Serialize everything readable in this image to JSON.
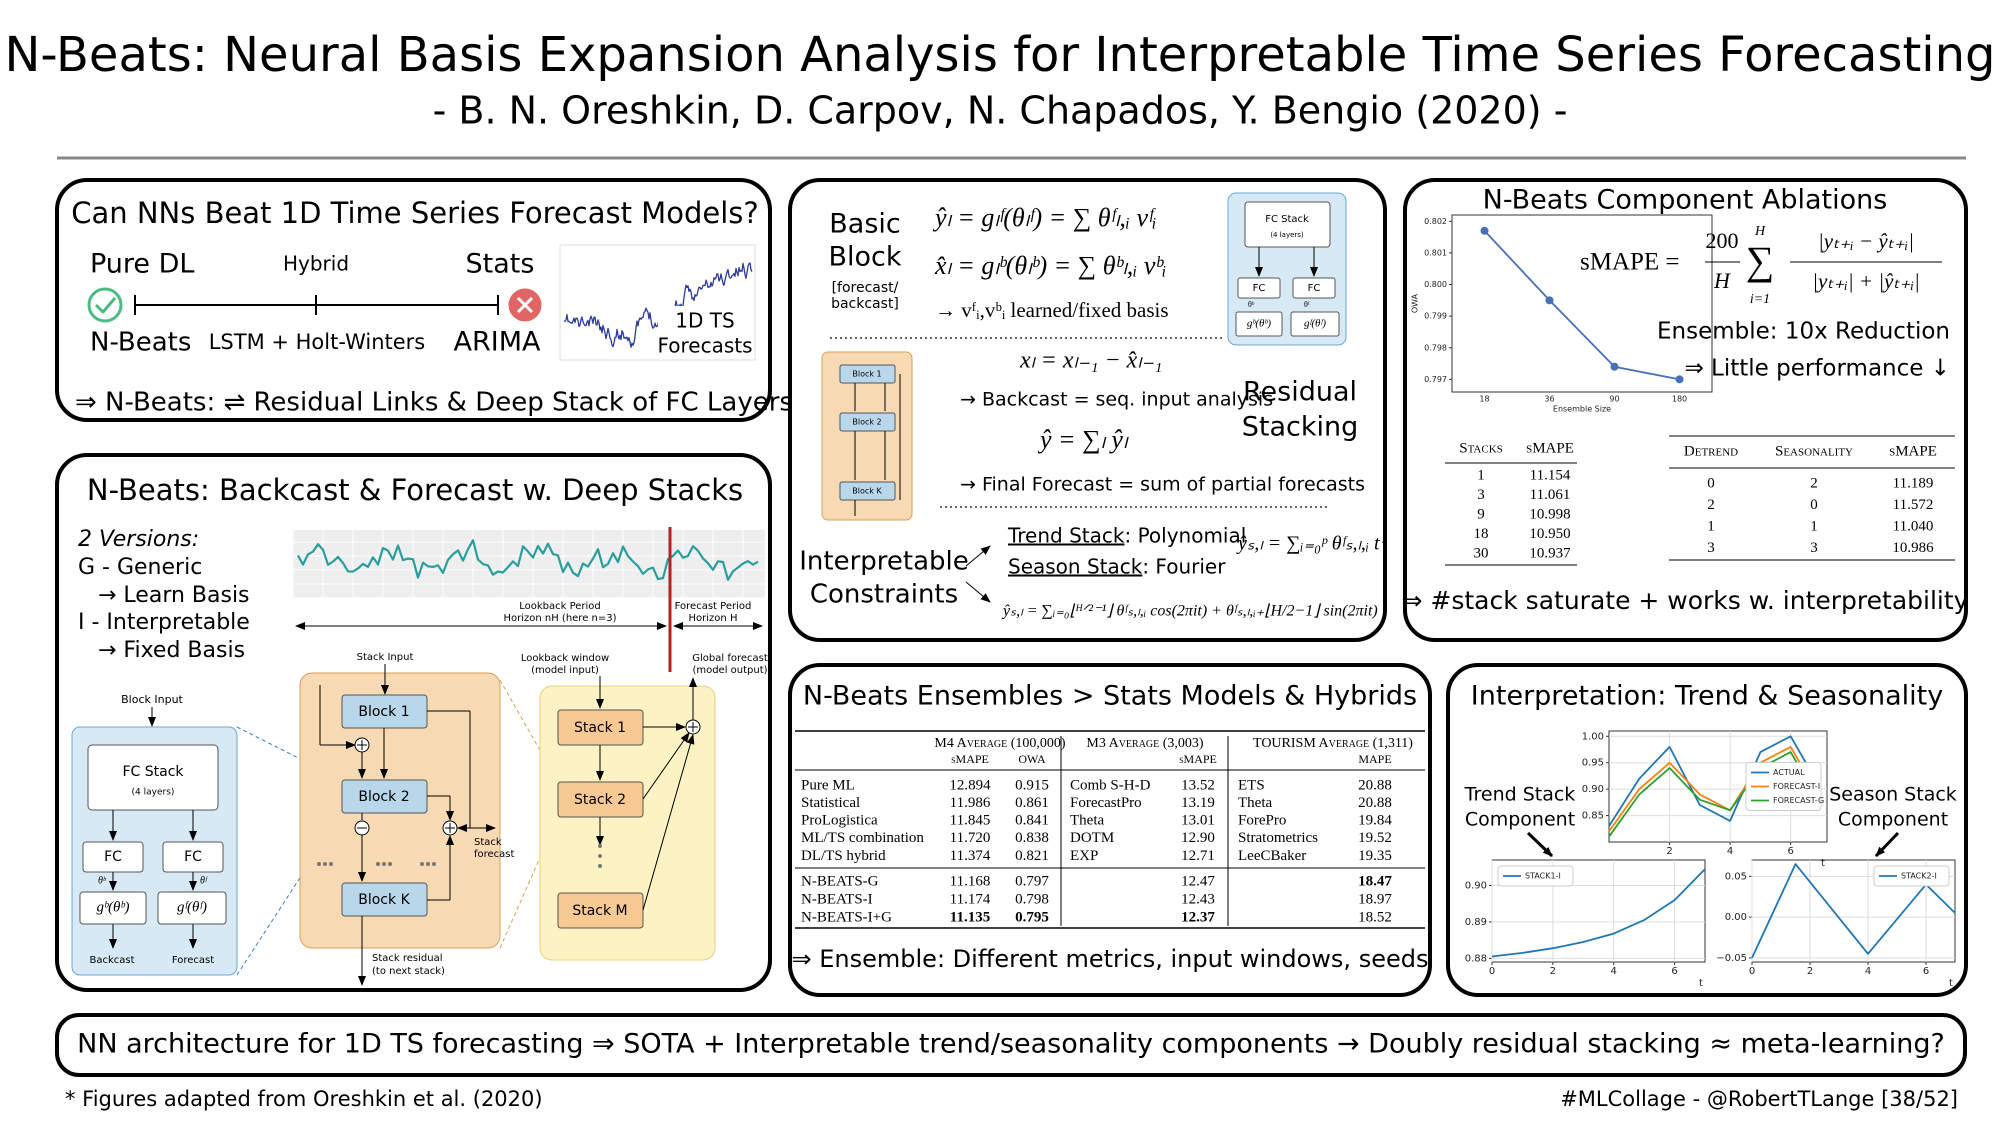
{
  "header": {
    "title": "N-Beats: Neural Basis Expansion Analysis for Interpretable Time Series Forecasting",
    "subtitle": "- B. N. Oreshkin, D. Carpov, N. Chapados, Y. Bengio (2020) -"
  },
  "motivation": {
    "title": "Can NNs Beat 1D Time Series Forecast Models?",
    "left": "Pure DL",
    "mid": "Hybrid",
    "right": "Stats",
    "left_model": "N-Beats",
    "mid_model": "LSTM + Holt-Winters",
    "right_model": "ARIMA",
    "figure_label": [
      "1D TS",
      "Forecasts"
    ],
    "conclusion": "⇒ N-Beats: ⇌ Residual Links & Deep Stack of FC Layers"
  },
  "architecture": {
    "title": "N-Beats: Backcast & Forecast w. Deep Stacks",
    "versions": [
      "2 Versions:",
      "G - Generic",
      "→ Learn Basis",
      "I - Interpretable",
      "→ Fixed Basis"
    ],
    "lookback": [
      "Lookback Period",
      "Horizon nH (here n=3)"
    ],
    "forecast_period": [
      "Forecast Period",
      "Horizon H"
    ],
    "block_input": "Block Input",
    "fc_stack": "FC Stack",
    "fc_layers": "(4 layers)",
    "fc": "FC",
    "theta_b": "θᵇ",
    "theta_f": "θᶠ",
    "g_b": "gᵇ(θᵇ)",
    "g_f": "gᶠ(θᶠ)",
    "backcast": "Backcast",
    "forecast": "Forecast",
    "stack_input": "Stack Input",
    "blocks": [
      "Block 1",
      "Block 2",
      "Block K"
    ],
    "stack_forecast": [
      "Stack",
      "forecast"
    ],
    "stack_residual": [
      "Stack residual",
      "(to next stack)"
    ],
    "lookback_window": [
      "Lookback window",
      "(model input)"
    ],
    "global_forecast": [
      "Global forecast",
      "(model output)"
    ],
    "stacks": [
      "Stack 1",
      "Stack 2",
      "Stack M"
    ]
  },
  "block": {
    "heading": [
      "Basic",
      "Block"
    ],
    "note": [
      "[forecast/",
      "backcast]"
    ],
    "eq_forecast": "ŷₗ = gₗᶠ(θₗᶠ) = ∑ θᶠₗ,ᵢ vᶠᵢ",
    "eq_backcast": "x̂ₗ = gₗᵇ(θₗᵇ) = ∑ θᵇₗ,ᵢ vᵇᵢ",
    "basis": "→ vᶠᵢ,vᵇᵢ learned/fixed basis",
    "fig_fc_stack": "FC Stack",
    "fig_layers": "(4 layers)",
    "fig_fc": "FC",
    "fig_theta_b": "θᵇ",
    "fig_theta_f": "θᶠ",
    "fig_g_b": "gᵇ(θᵇ)",
    "fig_g_f": "gᶠ(θᶠ)",
    "fig_blocks": [
      "Block 1",
      "Block 2",
      "Block K"
    ],
    "eq_residual": "xₗ = xₗ₋₁ − x̂ₗ₋₁",
    "backcast_note": "→ Backcast = seq. input analysis",
    "residual_heading": [
      "Residual",
      "Stacking"
    ],
    "eq_sum": "ŷ = ∑ₗ ŷₗ",
    "final_note": "→ Final Forecast = sum of partial forecasts",
    "constraints": [
      "Interpretable",
      "Constraints"
    ],
    "trend": "Trend Stack",
    "trend_basis": ": Polynomial",
    "season": "Season Stack",
    "season_basis": ": Fourier",
    "eq_trend": "ŷₛ,ₗ = ∑ᵢ₌₀ᵖ θᶠₛ,ₗ,ᵢ tⁱ",
    "eq_season": "ŷₛ,ₗ = ∑ᵢ₌₀⌊ᴴᐟ²⁻¹⌋ θᶠₛ,ₗ,ᵢ cos(2πit) + θᶠₛ,ₗ,ᵢ₊⌊H/2−1⌋ sin(2πit)"
  },
  "ablations": {
    "title": "N-Beats Component Ablations",
    "formula": {
      "lhs": "sMAPE =",
      "num": "200",
      "den": "H",
      "sum": "∑",
      "sum_top": "H",
      "sum_bot": "i=1",
      "frac_num": "|yₜ₊ᵢ − ŷₜ₊ᵢ|",
      "frac_den": "|yₜ₊ᵢ| + |ŷₜ₊ᵢ|"
    },
    "ensemble": "Ensemble: 10x Reduction",
    "perf": "⇒ Little performance ↓",
    "chart": {
      "type": "line",
      "x_label": "Ensemble Size",
      "y_label": "OWA",
      "categories": [
        18,
        36,
        90,
        180
      ],
      "values": [
        0.8017,
        0.7995,
        0.7974,
        0.797
      ],
      "color": "#4a6fb5",
      "markers": true,
      "grid": false,
      "ylim": [
        0.7966,
        0.8022
      ],
      "yticks": [
        0.797,
        0.798,
        0.799,
        {
          "value": 0.8,
          "label": "0.800"
        },
        0.801,
        0.802
      ]
    },
    "stacks_table": {
      "columns": [
        "Stacks",
        "sMAPE"
      ],
      "rows": [
        [
          "1",
          "11.154"
        ],
        [
          "3",
          "11.061"
        ],
        [
          "9",
          "10.998"
        ],
        [
          "18",
          "10.950"
        ],
        [
          "30",
          "10.937"
        ]
      ]
    },
    "basis_table": {
      "columns": [
        "Detrend",
        "Seasonality",
        "sMAPE"
      ],
      "rows": [
        [
          "0",
          "2",
          "11.189"
        ],
        [
          "2",
          "0",
          "11.572"
        ],
        [
          "1",
          "1",
          "11.040"
        ],
        [
          "3",
          "3",
          "10.986"
        ]
      ]
    },
    "conclusion": "⇒ #stack saturate + works w. interpretability"
  },
  "ensembles": {
    "title": "N-Beats Ensembles > Stats Models & Hybrids",
    "groups": [
      "M4 Average (100,000)",
      "M3 Average (3,003)",
      "TOURISM Average (1,311)"
    ],
    "columns": [
      "sMAPE",
      "OWA",
      "sMAPE",
      "MAPE"
    ],
    "rows": [
      [
        "Pure ML",
        "12.894",
        "0.915",
        "Comb S-H-D",
        "13.52",
        "ETS",
        "20.88"
      ],
      [
        "Statistical",
        "11.986",
        "0.861",
        "ForecastPro",
        "13.19",
        "Theta",
        "20.88"
      ],
      [
        "ProLogistica",
        "11.845",
        "0.841",
        "Theta",
        "13.01",
        "ForePro",
        "19.84"
      ],
      [
        "ML/TS combination",
        "11.720",
        "0.838",
        "DOTM",
        "12.90",
        "Stratometrics",
        "19.52"
      ],
      [
        "DL/TS hybrid",
        "11.374",
        "0.821",
        "EXP",
        "12.71",
        "LeeCBaker",
        "19.35"
      ]
    ],
    "nbeats_rows": [
      [
        "N-BEATS-G",
        "11.168",
        "0.797",
        null,
        "12.47",
        null,
        "18.47"
      ],
      [
        "N-BEATS-I",
        "11.174",
        "0.798",
        null,
        "12.43",
        null,
        "18.97"
      ],
      [
        "N-BEATS-I+G",
        "11.135",
        "0.795",
        null,
        "12.37",
        null,
        "18.52"
      ]
    ],
    "nbeats_bold": [
      [
        0,
        6
      ],
      [
        2,
        1
      ],
      [
        2,
        2
      ],
      [
        2,
        4
      ]
    ],
    "conclusion": "⇒ Ensemble: Different metrics, input windows, seeds"
  },
  "interpretation": {
    "title": "Interpretation: Trend & Seasonality",
    "trend_label": [
      "Trend Stack",
      "Component"
    ],
    "season_label": [
      "Season Stack",
      "Component"
    ],
    "forecast_chart": {
      "type": "line",
      "x_label": "t",
      "x": [
        0,
        1,
        2,
        3,
        4,
        5,
        6,
        7
      ],
      "xlim": [
        0,
        7.2
      ],
      "xticks": [
        2,
        4,
        6
      ],
      "ylim": [
        0.8,
        1.01
      ],
      "yticks": [
        0.85,
        {
          "value": 0.9,
          "label": "0.90"
        },
        0.95,
        {
          "value": 1,
          "label": "1.00"
        }
      ],
      "grid": true,
      "legend": "center right",
      "series": [
        {
          "name": "ACTUAL",
          "color": "#1f77b4",
          "values": [
            0.83,
            0.92,
            0.98,
            0.87,
            0.84,
            0.97,
            1.0,
            0.9
          ]
        },
        {
          "name": "FORECAST-I",
          "color": "#ff7f0e",
          "values": [
            0.82,
            0.9,
            0.95,
            0.89,
            0.86,
            0.95,
            0.98,
            0.88
          ]
        },
        {
          "name": "FORECAST-G",
          "color": "#2ca02c",
          "values": [
            0.81,
            0.89,
            0.94,
            0.88,
            0.86,
            0.94,
            0.97,
            0.87
          ]
        }
      ]
    },
    "trend_chart": {
      "type": "line",
      "x_label": "t",
      "x": [
        0,
        1,
        2,
        3,
        4,
        5,
        6,
        7
      ],
      "xlim": [
        0,
        7
      ],
      "xticks": [
        0,
        2,
        4,
        6
      ],
      "ylim": [
        0.879,
        0.907
      ],
      "yticks": [
        0.88,
        0.89,
        {
          "value": 0.9,
          "label": "0.90"
        }
      ],
      "grid": true,
      "legend": "upper left",
      "series": [
        {
          "name": "STACK1-I",
          "color": "#1f77b4",
          "values": [
            0.8805,
            0.8815,
            0.8828,
            0.8845,
            0.8868,
            0.8905,
            0.896,
            0.9045
          ]
        }
      ]
    },
    "season_chart": {
      "type": "line",
      "x_label": "t",
      "x": [
        0,
        1.5,
        4,
        6,
        7
      ],
      "xlim": [
        0,
        7
      ],
      "xticks": [
        0,
        2,
        4,
        6
      ],
      "ylim": [
        -0.055,
        0.07
      ],
      "yticks": [
        {
          "value": -0.05,
          "label": "−0.05"
        },
        {
          "value": 0,
          "label": "0.00"
        },
        0.05
      ],
      "grid": true,
      "legend": "upper right",
      "series": [
        {
          "name": "STACK2-I",
          "color": "#1f77b4",
          "values": [
            -0.05,
            0.065,
            -0.045,
            0.04,
            0.005
          ]
        }
      ]
    }
  },
  "summary": "NN architecture for 1D TS forecasting ⇒ SOTA + Interpretable trend/seasonality components → Doubly residual stacking ≈ meta-learning?",
  "footer": {
    "left": "* Figures adapted from Oreshkin et al. (2020)",
    "right": "#MLCollage - @RobertTLange [38/52]"
  }
}
